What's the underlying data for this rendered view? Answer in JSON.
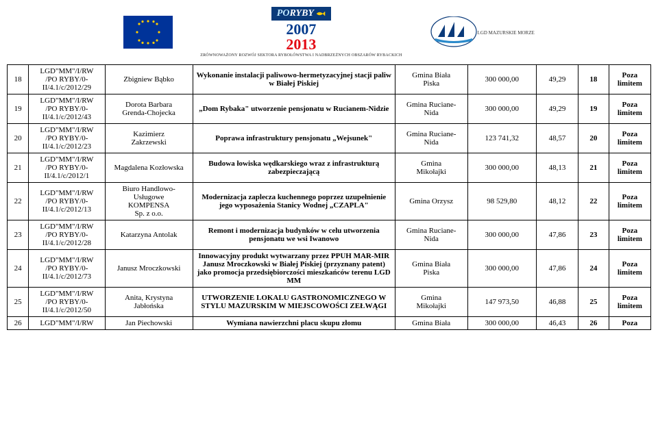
{
  "header": {
    "poryby_label_po": "PO",
    "poryby_label_ryby": "RYBY",
    "poryby_year1": "2007",
    "poryby_year2": "2013",
    "poryby_sub": "ZRÓWNOWAŻONY ROZWÓJ SEKTORA RYBOŁÓWSTWA I NADBRZEŻNYCH OBSZARÓW RYBACKICH",
    "lgd_sub": "LGD MAZURSKIE MORZE"
  },
  "rows": [
    {
      "num": "18",
      "id": "LGD\"MM\"/I/RW\n/PO RYBY/0-\nII/4.1/c/2012/29",
      "name": "Zbigniew Bąbko",
      "desc": "Wykonanie instalacji paliwowo-hermetyzacyjnej stacji paliw w Białej Piskiej",
      "desc_bold": true,
      "loc": "Gmina Biała\nPiska",
      "amt": "300 000,00",
      "pct": "49,29",
      "rank": "18",
      "note": "Poza\nlimitem"
    },
    {
      "num": "19",
      "id": "LGD\"MM\"/I/RW\n/PO RYBY/0-\nII/4.1/c/2012/43",
      "name": "Dorota Barbara\nGrenda-Chojecka",
      "desc": "„Dom Rybaka\" utworzenie pensjonatu w Rucianem-Nidzie",
      "desc_bold": true,
      "loc": "Gmina Ruciane-\nNida",
      "amt": "300 000,00",
      "pct": "49,29",
      "rank": "19",
      "note": "Poza\nlimitem"
    },
    {
      "num": "20",
      "id": "LGD\"MM\"/I/RW\n/PO RYBY/0-\nII/4.1/c/2012/23",
      "name": "Kazimierz\nZakrzewski",
      "desc": "Poprawa infrastruktury pensjonatu „Wejsunek\"",
      "desc_bold": true,
      "loc": "Gmina Ruciane-\nNida",
      "amt": "123 741,32",
      "pct": "48,57",
      "rank": "20",
      "note": "Poza\nlimitem"
    },
    {
      "num": "21",
      "id": "LGD\"MM\"/I/RW\n/PO RYBY/0-\nII/4.1/c/2012/1",
      "name": "Magdalena Kozłowska",
      "desc": "Budowa łowiska wędkarskiego wraz z infrastrukturą zabezpieczającą",
      "desc_bold": true,
      "loc": "Gmina\nMikołajki",
      "amt": "300 000,00",
      "pct": "48,13",
      "rank": "21",
      "note": "Poza\nlimitem"
    },
    {
      "num": "22",
      "id": "LGD\"MM\"/I/RW\n/PO RYBY/0-\nII/4.1/c/2012/13",
      "name": "Biuro Handlowo-\nUsługowe\nKOMPENSA\nSp. z o.o.",
      "desc": "Modernizacja zaplecza kuchennego poprzez uzupełnienie jego wyposażenia Stanicy Wodnej „CZAPLA\"",
      "desc_bold": true,
      "loc": "Gmina Orzysz",
      "amt": "98 529,80",
      "pct": "48,12",
      "rank": "22",
      "note": "Poza\nlimitem"
    },
    {
      "num": "23",
      "id": "LGD\"MM\"/I/RW\n/PO RYBY/0-\nII/4.1/c/2012/28",
      "name": "Katarzyna Antolak",
      "desc": "Remont i modernizacja budynków w celu utworzenia pensjonatu we wsi Iwanowo",
      "desc_bold": true,
      "loc": "Gmina Ruciane-\nNida",
      "amt": "300 000,00",
      "pct": "47,86",
      "rank": "23",
      "note": "Poza\nlimitem"
    },
    {
      "num": "24",
      "id": "LGD\"MM\"/I/RW\n/PO RYBY/0-\nII/4.1/c/2012/73",
      "name": "Janusz Mroczkowski",
      "desc": "Innowacyjny produkt wytwarzany przez PPUH MAR-MIR Janusz Mroczkowski w Białej Piskiej (przyznany patent) jako promocja przedsiębiorczości mieszkańców terenu LGD MM",
      "desc_bold": true,
      "loc": "Gmina Biała\nPiska",
      "amt": "300 000,00",
      "pct": "47,86",
      "rank": "24",
      "note": "Poza\nlimitem"
    },
    {
      "num": "25",
      "id": "LGD\"MM\"/I/RW\n/PO RYBY/0-\nII/4.1/c/2012/50",
      "name": "Anita, Krystyna\nJabłońska",
      "desc": "UTWORZENIE LOKALU GASTRONOMICZNEGO W STYLU MAZURSKIM W MIEJSCOWOŚCI ZEŁWĄGI",
      "desc_bold": true,
      "loc": "Gmina\nMikołajki",
      "amt": "147 973,50",
      "pct": "46,88",
      "rank": "25",
      "note": "Poza\nlimitem"
    },
    {
      "num": "26",
      "id": "LGD\"MM\"/I/RW",
      "name": "Jan Piechowski",
      "desc": "Wymiana nawierzchni placu skupu złomu",
      "desc_bold": true,
      "loc": "Gmina Biała",
      "amt": "300 000,00",
      "pct": "46,43",
      "rank": "26",
      "note": "Poza"
    }
  ],
  "colors": {
    "text": "#000000",
    "border": "#000000",
    "bg": "#ffffff",
    "eu_blue": "#003399",
    "eu_gold": "#ffcc00",
    "logo_blue": "#003a8c",
    "logo_red": "#e30613"
  }
}
